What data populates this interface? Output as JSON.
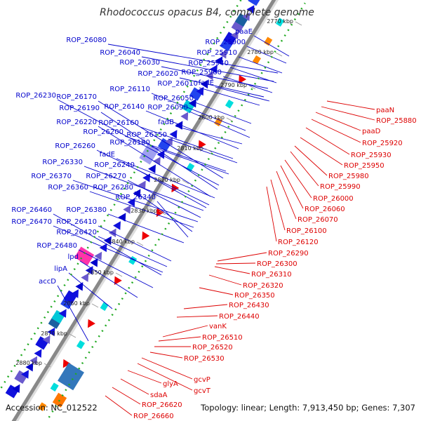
{
  "title": "Rhodococcus opacus B4, complete genome",
  "accession": "Accession: NC_012522",
  "topology": "Topology: linear; Length: 7,913,450 bp; Genes: 7,307",
  "colors": {
    "forward_label": "#0000cc",
    "reverse_label": "#dd0000",
    "backbone": "#888888",
    "tick": "#22aa22"
  },
  "kbp_ticks": [
    "2770 kbp",
    "2780 kbp",
    "2790 kbp",
    "2800 kbp",
    "2810 kbp",
    "2820 kbp",
    "2830 kbp",
    "2840 kbp",
    "2850 kbp",
    "2860 kbp",
    "2870 kbp",
    "2880 kbp"
  ],
  "forward_labels": [
    "ROP_26080",
    "ROP_26040",
    "paaE",
    "ROP_25900",
    "ROP_26030",
    "ROP_25910",
    "ROP_26020",
    "ROP_25940",
    "ROP_26010",
    "ROP_25960",
    "fadE",
    "ROP_26110",
    "ROP_26050",
    "ROP_26230",
    "ROP_26170",
    "ROP_26190",
    "ROP_26140",
    "ROP_26090",
    "ROP_26220",
    "ROP_26160",
    "fadB",
    "ROP_26200",
    "ROP_26150",
    "ROP_26180",
    "ROP_26260",
    "fadE",
    "ROP_26330",
    "ROP_26240",
    "ROP_26370",
    "ROP_26270",
    "ROP_26360",
    "ROP_26280",
    "ROP_26340",
    "ROP_26380",
    "ROP_26460",
    "ROP_26470",
    "ROP_26410",
    "ROP_26420",
    "ROP_26480",
    "lpd",
    "lipA",
    "accD"
  ],
  "reverse_labels": [
    "paaN",
    "ROP_25880",
    "paaD",
    "ROP_25920",
    "ROP_25930",
    "ROP_25950",
    "ROP_25980",
    "ROP_25990",
    "ROP_26000",
    "ROP_26060",
    "ROP_26070",
    "ROP_26100",
    "ROP_26120",
    "ROP_26290",
    "ROP_26300",
    "ROP_26310",
    "ROP_26320",
    "ROP_26350",
    "ROP_26430",
    "ROP_26440",
    "vanK",
    "ROP_26510",
    "ROP_26520",
    "ROP_26530",
    "gcvP",
    "gcvT",
    "glyA",
    "sdaA",
    "ROP_26620",
    "ROP_26660"
  ]
}
